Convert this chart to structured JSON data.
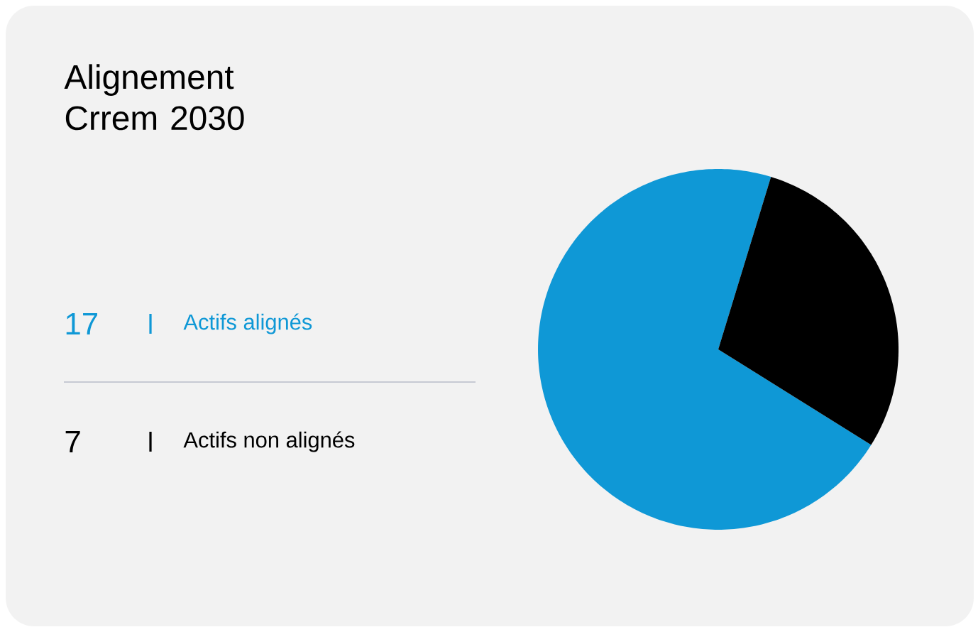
{
  "chart_data": {
    "type": "pie",
    "title": "Alignement Crrem 2030",
    "categories": [
      "Actifs alignés",
      "Actifs non alignés"
    ],
    "values": [
      17,
      7
    ],
    "value_labels": [
      "17",
      "7"
    ],
    "colors": [
      "#0f98d6",
      "#000000"
    ],
    "legend": "left"
  }
}
